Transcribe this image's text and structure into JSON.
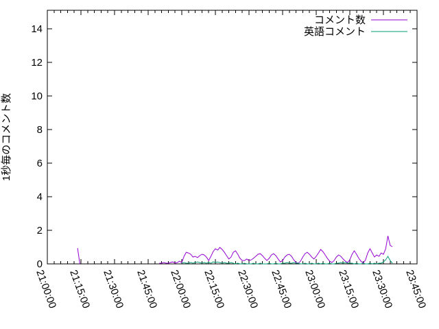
{
  "chart_data": {
    "type": "line",
    "title": "",
    "xlabel": "",
    "ylabel": "1秒毎のコメント数",
    "x_range": [
      "21:00:00",
      "23:45:00"
    ],
    "ylim": [
      0,
      15.1
    ],
    "yticks": [
      "0",
      "2",
      "4",
      "6",
      "8",
      "10",
      "12",
      "14"
    ],
    "xticks": [
      "21:00:00",
      "21:15:00",
      "21:30:00",
      "21:45:00",
      "22:00:00",
      "22:15:00",
      "22:30:00",
      "22:45:00",
      "23:00:00",
      "23:15:00",
      "23:30:00",
      "23:45:00"
    ],
    "x_major_tick_minutes": 15,
    "x_minor_tick_minutes": 3,
    "grid": false,
    "legend_position": "top-right-inside",
    "background_color": "#ffffff",
    "axis_color": "#000000",
    "series": [
      {
        "name": "コメント数",
        "color": "#9400d3",
        "segments": [
          {
            "points": [
              [
                "21:13:30",
                0.94
              ],
              [
                "21:14:30",
                0.0
              ]
            ]
          },
          {
            "start": "21:50:00",
            "step_seconds": 60,
            "values": [
              0.04,
              0.04,
              0.08,
              0.04,
              0.04,
              0.08,
              0.12,
              0.04,
              0.08,
              0.16,
              0.08,
              0.45,
              0.69,
              0.65,
              0.57,
              0.41,
              0.45,
              0.37,
              0.49,
              0.57,
              0.53,
              0.41,
              0.2,
              0.45,
              0.73,
              0.9,
              0.82,
              0.98,
              0.86,
              0.69,
              0.49,
              0.29,
              0.41,
              0.69,
              0.78,
              0.57,
              0.33,
              0.2,
              0.2,
              0.29,
              0.2,
              0.24,
              0.33,
              0.45,
              0.57,
              0.61,
              0.49,
              0.33,
              0.2,
              0.33,
              0.53,
              0.61,
              0.49,
              0.29,
              0.12,
              0.2,
              0.41,
              0.53,
              0.57,
              0.45,
              0.24,
              0.08,
              0.04,
              0.16,
              0.41,
              0.61,
              0.69,
              0.57,
              0.41,
              0.29,
              0.45,
              0.65,
              0.86,
              0.73,
              0.53,
              0.33,
              0.16,
              0.08,
              0.2,
              0.41,
              0.53,
              0.45,
              0.29,
              0.16,
              0.08,
              0.24,
              0.57,
              0.78,
              0.57,
              0.33,
              0.16,
              0.04,
              0.24,
              0.65,
              0.9,
              0.65,
              0.41,
              0.53,
              0.45,
              0.65,
              0.57,
              0.9,
              1.67,
              1.1,
              1.02
            ]
          }
        ]
      },
      {
        "name": "英語コメント",
        "color": "#009e73",
        "segments": [
          {
            "start": "22:00:00",
            "step_seconds": 60,
            "values": [
              0.04,
              0.08,
              0.04,
              0.04,
              0.08,
              0.04,
              0.08,
              0.12,
              0.08,
              0.04,
              0.08,
              0.04,
              0.08,
              0.04,
              0.12,
              0.08,
              0.12,
              0.08,
              0.04,
              0.08,
              0.04,
              0.04,
              0.08,
              0.04,
              0.0,
              0.04,
              0.0,
              0.0,
              0.04,
              0.0,
              0.0,
              0.0,
              0.04,
              0.0,
              0.0,
              0.04,
              0.0,
              0.0,
              0.0,
              0.04,
              0.0,
              0.0,
              0.04,
              0.0,
              0.0,
              0.04,
              0.04,
              0.08,
              0.04,
              0.04,
              0.08,
              0.04,
              0.04,
              0.0,
              0.0,
              0.04,
              0.0,
              0.0,
              0.04,
              0.0,
              0.0,
              0.04,
              0.0,
              0.04,
              0.0,
              0.0,
              0.04,
              0.0,
              0.0,
              0.04,
              0.04,
              0.08,
              0.04,
              0.08,
              0.04,
              0.04,
              0.04,
              0.0,
              0.04,
              0.0,
              0.0,
              0.04,
              0.0,
              0.0,
              0.04,
              0.0,
              0.04,
              0.0,
              0.04,
              0.04,
              0.12,
              0.24,
              0.45,
              0.2,
              0.04
            ]
          }
        ]
      }
    ]
  }
}
